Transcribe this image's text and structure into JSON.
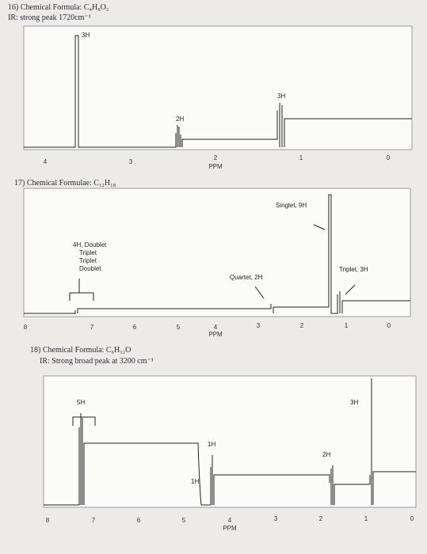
{
  "problems": [
    {
      "title": "16) Chemical Formula: C₄H₈O₂",
      "ir": "IR: strong peak 1720cm⁻¹",
      "peak_labels": [
        "3H",
        "2H",
        "3H"
      ],
      "ticks": [
        4,
        3,
        2,
        1,
        0
      ],
      "axis_label": "PPM"
    },
    {
      "title": "17) Chemical Formulae: C₁₂H₁₈",
      "peak_labels": [
        "Singlet, 9H",
        "4H, Doublet",
        "Triplet",
        "Triplet",
        "Doublet",
        "Quartet, 2H",
        "Triplet, 3H"
      ],
      "ticks": [
        8,
        7,
        6,
        5,
        4,
        3,
        2,
        1,
        0
      ],
      "axis_label": "PPM"
    },
    {
      "title": "18) Chemical Formula: C₆H₁₂O",
      "ir": "IR: Strong broad peak at 3200 cm⁻¹",
      "peak_labels": [
        "5H",
        "3H",
        "1H",
        "2H",
        "1H"
      ],
      "ticks": [
        8,
        7,
        6,
        5,
        4,
        3,
        2,
        1,
        0
      ],
      "axis_label": "PPM"
    }
  ]
}
